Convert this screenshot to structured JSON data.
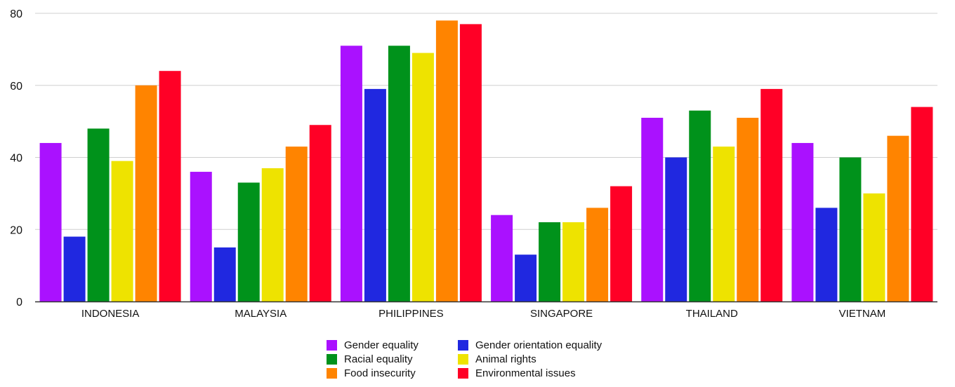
{
  "chart_data": {
    "type": "bar",
    "title": "",
    "xlabel": "",
    "ylabel": "",
    "ylim": [
      0,
      80
    ],
    "yticks": [
      0,
      20,
      40,
      60,
      80
    ],
    "grid": true,
    "legend_position": "bottom-center",
    "categories": [
      "INDONESIA",
      "MALAYSIA",
      "PHILIPPINES",
      "SINGAPORE",
      "THAILAND",
      "VIETNAM"
    ],
    "series": [
      {
        "name": "Gender equality",
        "color": "#AA11FF",
        "values": [
          44,
          36,
          71,
          24,
          51,
          44
        ]
      },
      {
        "name": "Gender orientation equality",
        "color": "#2028E0",
        "values": [
          18,
          15,
          59,
          13,
          40,
          26
        ]
      },
      {
        "name": "Racial equality",
        "color": "#00921B",
        "values": [
          48,
          33,
          71,
          22,
          53,
          40
        ]
      },
      {
        "name": "Animal rights",
        "color": "#EEE300",
        "values": [
          39,
          37,
          69,
          22,
          43,
          30
        ]
      },
      {
        "name": "Food insecurity",
        "color": "#FF8400",
        "values": [
          60,
          43,
          78,
          26,
          51,
          46
        ]
      },
      {
        "name": "Environmental issues",
        "color": "#FF0026",
        "values": [
          64,
          49,
          77,
          32,
          59,
          54
        ]
      }
    ]
  },
  "legend": {
    "items": [
      {
        "label": "Gender equality",
        "color": "#AA11FF"
      },
      {
        "label": "Gender orientation equality",
        "color": "#2028E0"
      },
      {
        "label": "Racial equality",
        "color": "#00921B"
      },
      {
        "label": "Animal rights",
        "color": "#EEE300"
      },
      {
        "label": "Food insecurity",
        "color": "#FF8400"
      },
      {
        "label": "Environmental issues",
        "color": "#FF0026"
      }
    ]
  }
}
